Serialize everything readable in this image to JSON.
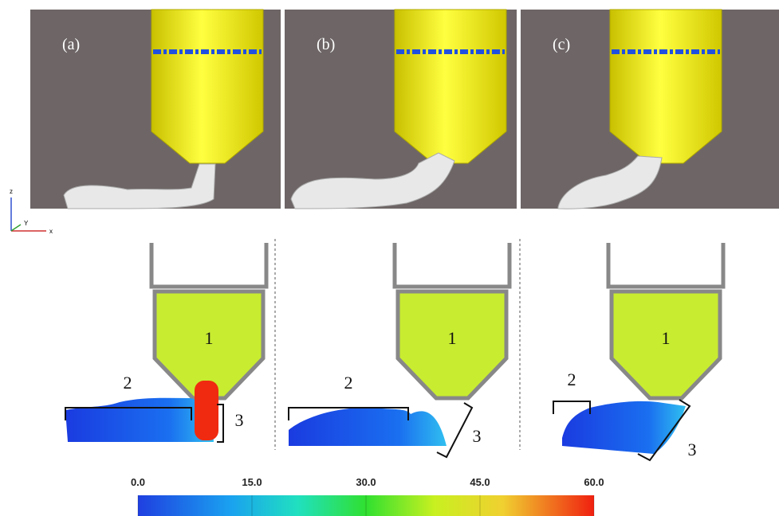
{
  "panels": [
    {
      "label": "(a)",
      "regions": [
        "1",
        "2",
        "3"
      ]
    },
    {
      "label": "(b)",
      "regions": [
        "1",
        "2",
        "3"
      ]
    },
    {
      "label": "(c)",
      "regions": [
        "1",
        "2",
        "3"
      ]
    }
  ],
  "axes": {
    "z": "z",
    "y": "Y",
    "x": "x"
  },
  "colorbar": {
    "ticks": [
      {
        "value": 0,
        "label": "0.0"
      },
      {
        "value": 15,
        "label": "15.0"
      },
      {
        "value": 30,
        "label": "30.0"
      },
      {
        "value": 45,
        "label": "45.0"
      },
      {
        "value": 60,
        "label": "60.0"
      }
    ]
  }
}
